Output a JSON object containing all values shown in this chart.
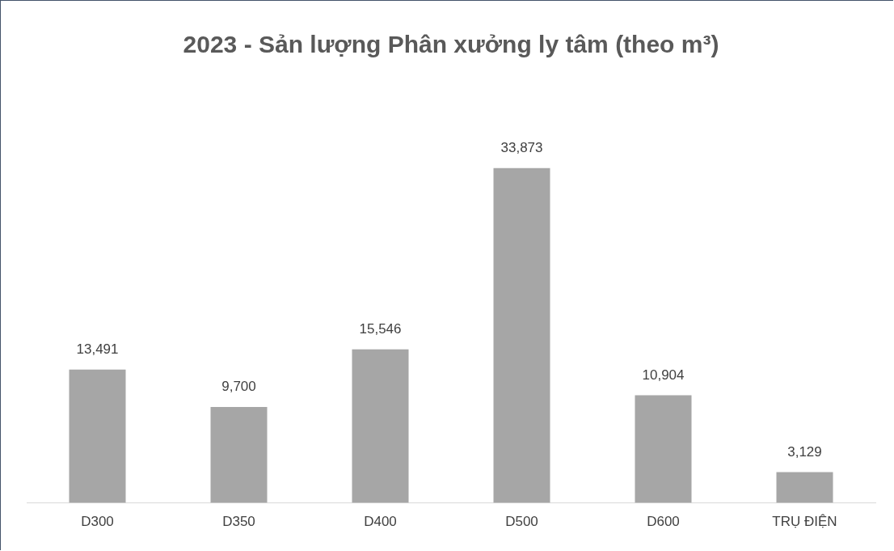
{
  "chart_data": {
    "type": "bar",
    "title": "2023 - Sản lượng Phân xưởng ly tâm (theo m³)",
    "categories": [
      "D300",
      "D350",
      "D400",
      "D500",
      "D600",
      "TRỤ ĐIỆN"
    ],
    "values": [
      13491,
      9700,
      15546,
      33873,
      10904,
      3129
    ],
    "value_labels": [
      "13,491",
      "9,700",
      "15,546",
      "33,873",
      "10,904",
      "3,129"
    ],
    "color": "#a6a6a6",
    "grid": false,
    "legend": false,
    "tick_labels": "x"
  }
}
